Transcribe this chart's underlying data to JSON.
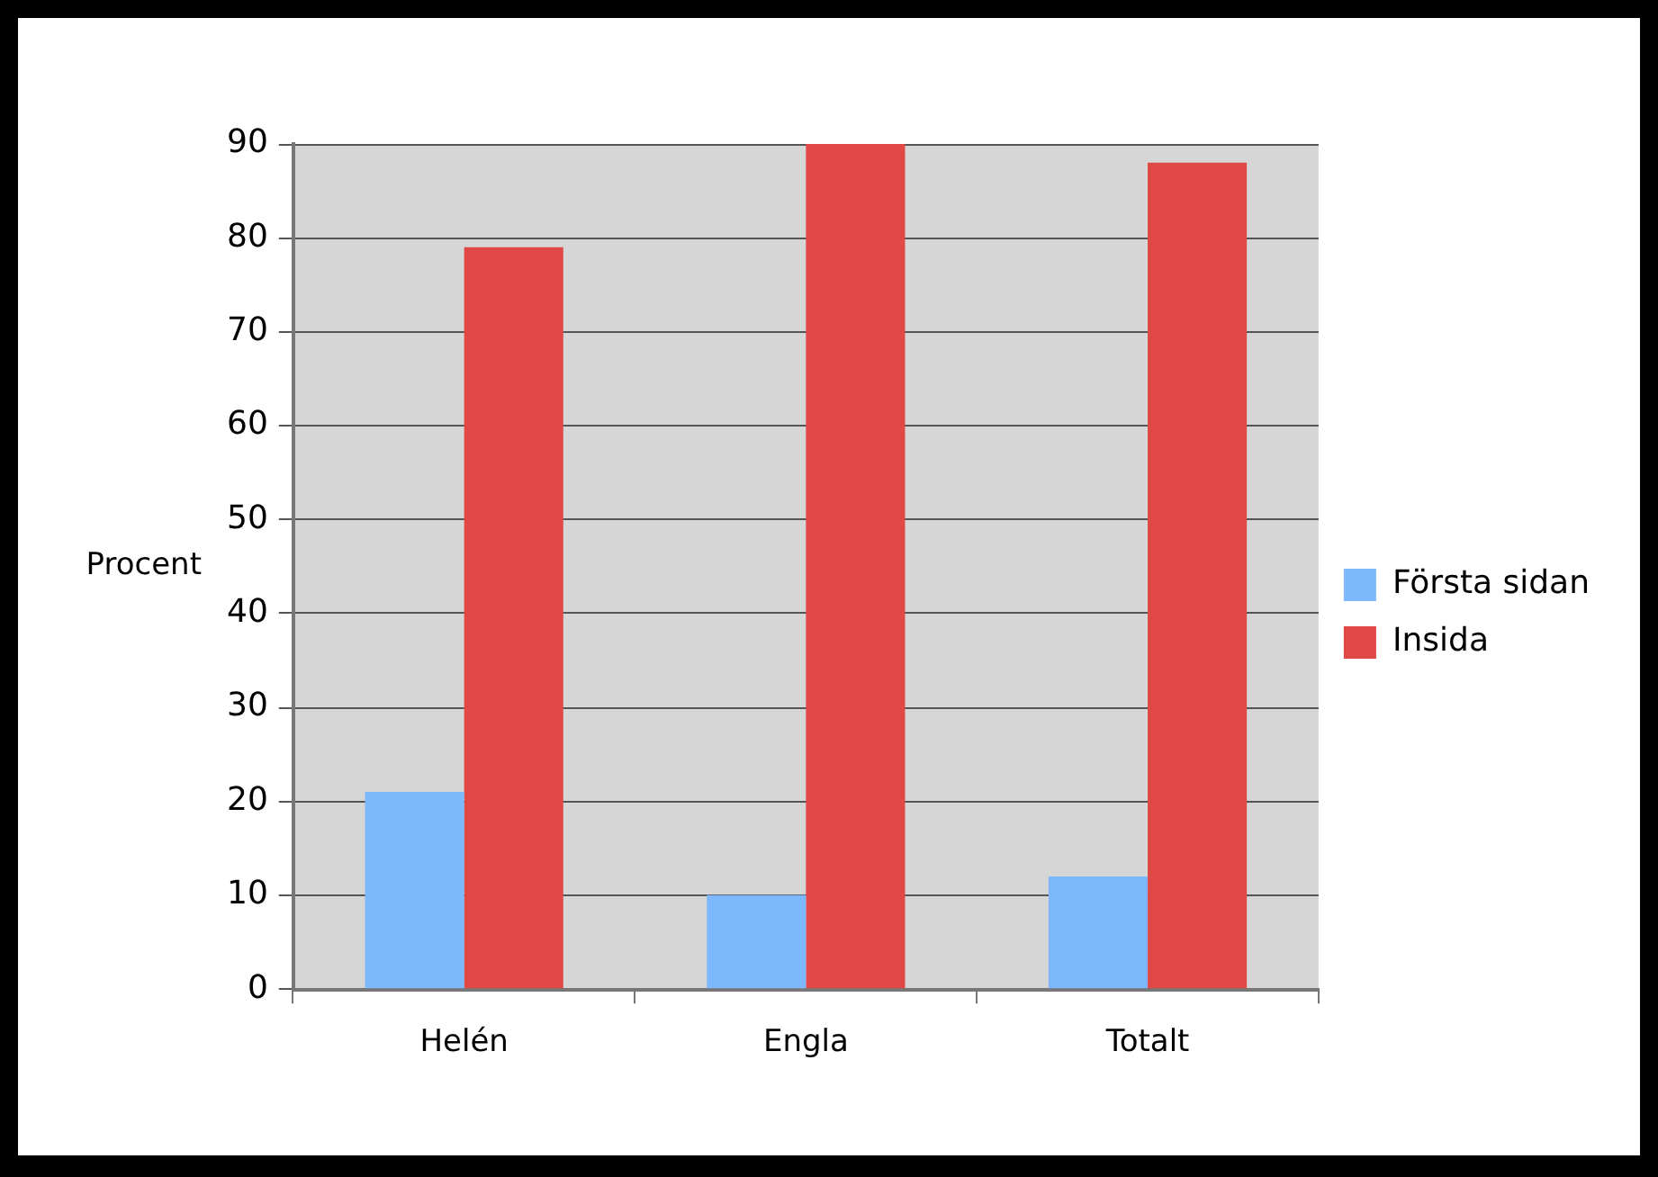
{
  "chart_data": {
    "type": "bar",
    "ylabel": "Procent",
    "categories": [
      "Helén",
      "Engla",
      "Totalt"
    ],
    "series": [
      {
        "name": "Första sidan",
        "color": "#7cb8fb",
        "values": [
          21,
          10,
          12
        ]
      },
      {
        "name": "Insida",
        "color": "#e04845",
        "values": [
          79,
          90,
          88
        ]
      }
    ],
    "ylim": [
      0,
      90
    ],
    "yticks": [
      0,
      10,
      20,
      30,
      40,
      50,
      60,
      70,
      80,
      90
    ],
    "grid": "y",
    "legend": "right"
  }
}
